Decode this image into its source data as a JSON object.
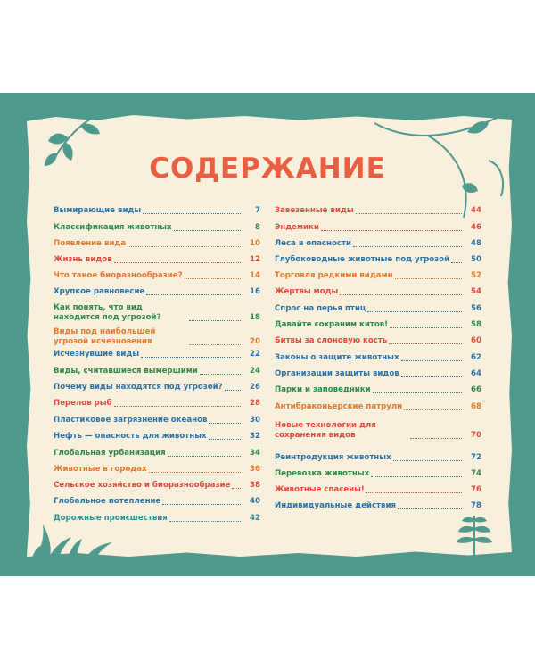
{
  "title": "СОДЕРЖАНИЕ",
  "colors": {
    "band": "#4f9a8e",
    "paper": "#f8f0dc",
    "title": "#e85f44"
  },
  "left": [
    {
      "label": "Вымирающие виды",
      "page": "7",
      "color": "blue"
    },
    {
      "label": "Классификация животных",
      "page": "8",
      "color": "green"
    },
    {
      "label": "Появление вида",
      "page": "10",
      "color": "orange"
    },
    {
      "label": "Жизнь видов",
      "page": "12",
      "color": "red"
    },
    {
      "label": "Что такое биоразнообразие?",
      "page": "14",
      "color": "orange"
    },
    {
      "label": "Хрупкое равновесие",
      "page": "16",
      "color": "blue"
    },
    {
      "label": "Как понять, что вид находится под угрозой?",
      "label2": "",
      "page": "18",
      "color": "green"
    },
    {
      "label": "Виды под наибольшей угрозой исчезновения",
      "page": "20",
      "color": "orange"
    },
    {
      "label": "Исчезнувшие виды",
      "page": "22",
      "color": "blue"
    },
    {
      "label": "Виды, считавшиеся вымершими",
      "page": "24",
      "color": "green"
    },
    {
      "label": "Почему виды находятся под угрозой?",
      "page": "26",
      "color": "blue"
    },
    {
      "label": "Перелов рыб",
      "page": "28",
      "color": "red"
    },
    {
      "label": "Пластиковое загрязнение океанов",
      "page": "30",
      "color": "blue"
    },
    {
      "label": "Нефть — опасность для животных",
      "page": "32",
      "color": "blue"
    },
    {
      "label": "Глобальная урбанизация",
      "page": "34",
      "color": "green"
    },
    {
      "label": "Животные в городах",
      "page": "36",
      "color": "orange"
    },
    {
      "label": "Сельское хозяйство и биоразнообразие",
      "page": "38",
      "color": "red"
    },
    {
      "label": "Глобальное потепление",
      "page": "40",
      "color": "blue"
    },
    {
      "label": "Дорожные происшествия",
      "page": "42",
      "color": "teal"
    }
  ],
  "right": [
    {
      "label": "Завезенные виды",
      "page": "44",
      "color": "red"
    },
    {
      "label": "Эндемики",
      "page": "46",
      "color": "red"
    },
    {
      "label": "Леса в опасности",
      "page": "48",
      "color": "blue"
    },
    {
      "label": "Глубоководные животные под угрозой",
      "page": "50",
      "color": "blue"
    },
    {
      "label": "Торговля редкими видами",
      "page": "52",
      "color": "orange"
    },
    {
      "label": "Жертвы моды",
      "page": "54",
      "color": "red"
    },
    {
      "label": "Спрос на перья птиц",
      "page": "56",
      "color": "blue"
    },
    {
      "label": "Давайте сохраним китов!",
      "page": "58",
      "color": "green"
    },
    {
      "label": "Битвы за слоновую кость",
      "page": "60",
      "color": "red"
    },
    {
      "label": "Законы о защите животных",
      "page": "62",
      "color": "blue"
    },
    {
      "label": "Организации защиты видов",
      "page": "64",
      "color": "blue"
    },
    {
      "label": "Парки и заповедники",
      "page": "66",
      "color": "green"
    },
    {
      "label": "Антибраконьерские патрули",
      "page": "68",
      "color": "orange"
    },
    {
      "label": "Новые технологии для сохранения видов",
      "page": "70",
      "color": "red"
    },
    {
      "label": "Реинтродукция животных",
      "page": "72",
      "color": "blue"
    },
    {
      "label": "Перевозка животных",
      "page": "74",
      "color": "green"
    },
    {
      "label": "Животные спасены!",
      "page": "76",
      "color": "red"
    },
    {
      "label": "Индивидуальные действия",
      "page": "78",
      "color": "blue"
    }
  ]
}
